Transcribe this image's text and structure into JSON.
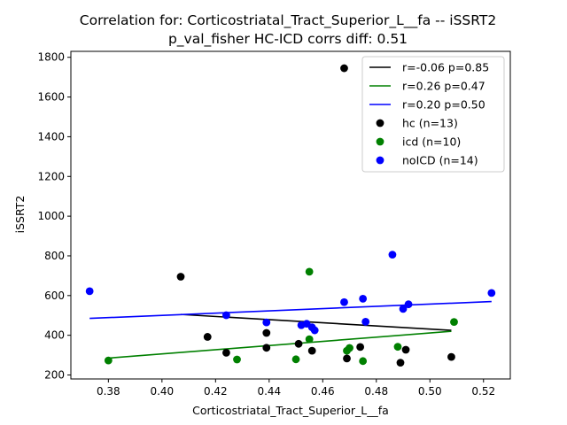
{
  "chart_data": {
    "type": "scatter",
    "title": "Correlation for: Corticostriatal_Tract_Superior_L__fa -- iSSRT2",
    "subtitle": "p_val_fisher HC-ICD corrs diff: 0.51",
    "xlabel": "Corticostriatal_Tract_Superior_L__fa",
    "ylabel": "iSSRT2",
    "xlim": [
      0.366,
      0.53
    ],
    "ylim": [
      180,
      1830
    ],
    "xticks": [
      0.38,
      0.4,
      0.42,
      0.44,
      0.46,
      0.48,
      0.5,
      0.52
    ],
    "xtick_labels": [
      "0.38",
      "0.40",
      "0.42",
      "0.44",
      "0.46",
      "0.48",
      "0.50",
      "0.52"
    ],
    "yticks": [
      200,
      400,
      600,
      800,
      1000,
      1200,
      1400,
      1600,
      1800
    ],
    "ytick_labels": [
      "200",
      "400",
      "600",
      "800",
      "1000",
      "1200",
      "1400",
      "1600",
      "1800"
    ],
    "grid": false,
    "legend_position": "top-right",
    "fit_lines": [
      {
        "label": "r=-0.06 p=0.85",
        "color": "#000000",
        "x": [
          0.407,
          0.508
        ],
        "y": [
          505,
          425
        ]
      },
      {
        "label": "r=0.26 p=0.47",
        "color": "#008000",
        "x": [
          0.38,
          0.508
        ],
        "y": [
          285,
          420
        ]
      },
      {
        "label": "r=0.20 p=0.50",
        "color": "#0000ff",
        "x": [
          0.373,
          0.523
        ],
        "y": [
          485,
          570
        ]
      }
    ],
    "series": [
      {
        "name": "hc (n=13)",
        "color": "#000000",
        "points": [
          [
            0.407,
            695
          ],
          [
            0.417,
            392
          ],
          [
            0.424,
            312
          ],
          [
            0.439,
            412
          ],
          [
            0.439,
            337
          ],
          [
            0.451,
            357
          ],
          [
            0.456,
            322
          ],
          [
            0.468,
            1745
          ],
          [
            0.469,
            283
          ],
          [
            0.474,
            341
          ],
          [
            0.489,
            262
          ],
          [
            0.491,
            327
          ],
          [
            0.508,
            291
          ]
        ]
      },
      {
        "name": "icd (n=10)",
        "color": "#008000",
        "points": [
          [
            0.38,
            273
          ],
          [
            0.428,
            278
          ],
          [
            0.45,
            279
          ],
          [
            0.455,
            720
          ],
          [
            0.455,
            380
          ],
          [
            0.469,
            322
          ],
          [
            0.47,
            336
          ],
          [
            0.475,
            270
          ],
          [
            0.488,
            342
          ],
          [
            0.509,
            467
          ]
        ]
      },
      {
        "name": "noICD (n=14)",
        "color": "#0000ff",
        "points": [
          [
            0.373,
            622
          ],
          [
            0.424,
            501
          ],
          [
            0.439,
            465
          ],
          [
            0.452,
            451
          ],
          [
            0.454,
            458
          ],
          [
            0.456,
            440
          ],
          [
            0.457,
            425
          ],
          [
            0.468,
            567
          ],
          [
            0.475,
            584
          ],
          [
            0.476,
            468
          ],
          [
            0.486,
            806
          ],
          [
            0.49,
            533
          ],
          [
            0.492,
            556
          ],
          [
            0.523,
            613
          ]
        ]
      }
    ]
  }
}
